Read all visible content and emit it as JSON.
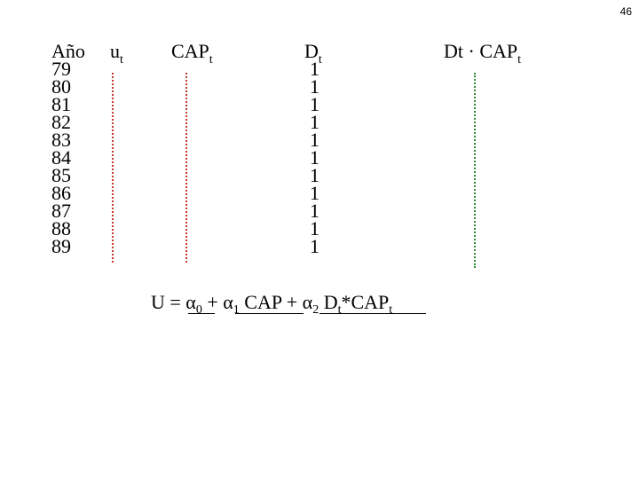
{
  "page_number": "46",
  "table": {
    "headers": [
      {
        "text": "Año"
      },
      {
        "text": "u",
        "sub": "t"
      },
      {
        "text": "CAP",
        "sub": "t"
      },
      {
        "text": "D",
        "sub": "t"
      },
      {
        "text": "Dt · CAP",
        "sub": "t"
      }
    ],
    "years": [
      "79",
      "80",
      "81",
      "82",
      "83",
      "84",
      "85",
      "86",
      "87",
      "88",
      "89"
    ],
    "d_values": [
      "1",
      "1",
      "1",
      "1",
      "1",
      "1",
      "1",
      "1",
      "1",
      "1",
      "1"
    ]
  },
  "equation": [
    {
      "text": "U = "
    },
    {
      "text": "α"
    },
    {
      "text": "0",
      "sub": true
    },
    {
      "text": " + "
    },
    {
      "text": "α"
    },
    {
      "text": "1",
      "sub": true
    },
    {
      "text": " CAP + "
    },
    {
      "text": "α"
    },
    {
      "text": "2",
      "sub": true
    },
    {
      "text": " D"
    },
    {
      "text": "t",
      "sub": true
    },
    {
      "text": "*CAP"
    },
    {
      "text": "t",
      "sub": true
    }
  ]
}
